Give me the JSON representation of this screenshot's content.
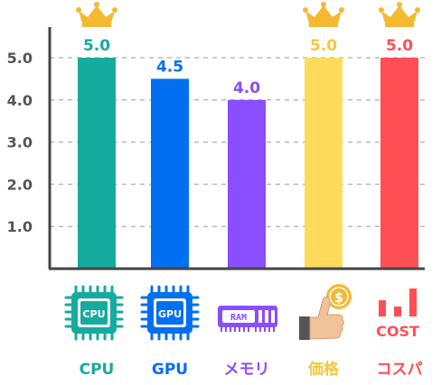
{
  "chart_data": {
    "type": "bar",
    "categories": [
      "CPU",
      "GPU",
      "メモリ",
      "価格",
      "コスパ"
    ],
    "values": [
      5.0,
      4.5,
      4.0,
      5.0,
      5.0
    ],
    "value_labels": [
      "5.0",
      "4.5",
      "4.0",
      "5.0",
      "5.0"
    ],
    "colors": [
      "#16ab9f",
      "#0070f0",
      "#8a4dff",
      "#ffdb5c",
      "#ff4f55"
    ],
    "crowned": [
      true,
      false,
      false,
      true,
      true
    ],
    "yticks": [
      1.0,
      2.0,
      3.0,
      4.0,
      5.0
    ],
    "ytick_labels": [
      "1.0",
      "2.0",
      "3.0",
      "4.0",
      "5.0"
    ],
    "ylim": [
      0,
      5.5
    ],
    "grid": true,
    "crown_color": "#f5b932",
    "icons": [
      "cpu-chip-icon",
      "gpu-chip-icon",
      "ram-module-icon",
      "price-thumbs-up-coin-icon",
      "cost-bar-icon"
    ],
    "icon_texts": {
      "cpu": "CPU",
      "gpu": "GPU",
      "ram": "RAM",
      "cost": "COST",
      "coin": "$"
    }
  }
}
